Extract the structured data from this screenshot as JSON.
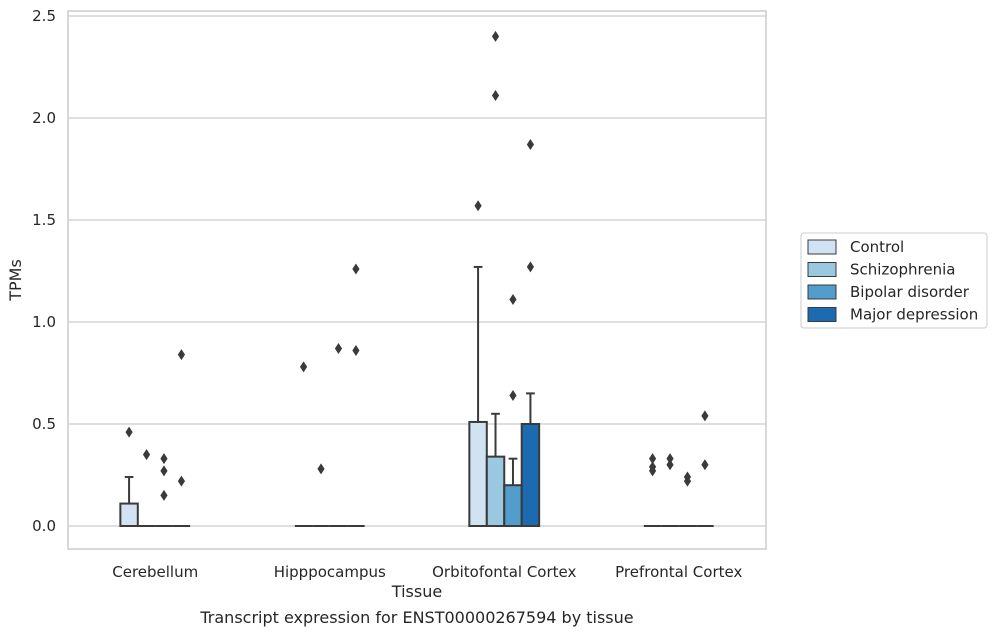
{
  "chart_data": {
    "type": "box",
    "xlabel": "Tissue",
    "ylabel": "TPMs",
    "caption": "Transcript expression for ENST00000267594 by tissue",
    "ylim": [
      -0.12,
      2.53
    ],
    "yticks": [
      "0.0",
      "0.5",
      "1.0",
      "1.5",
      "2.0",
      "2.5"
    ],
    "grid": true,
    "legend_placement": "right",
    "categories": [
      "Cerebellum",
      "Hipppocampus",
      "Orbitofontal Cortex",
      "Prefrontal Cortex"
    ],
    "series": [
      {
        "name": "Control",
        "color": "#d1e2f2",
        "boxes": [
          {
            "q1": 0.0,
            "median": 0.0,
            "q3": 0.11,
            "whislo": 0.0,
            "whishi": 0.24,
            "fliers": [
              0.46
            ]
          },
          {
            "q1": 0.0,
            "median": 0.0,
            "q3": 0.0,
            "whislo": 0.0,
            "whishi": 0.0,
            "fliers": [
              0.78
            ]
          },
          {
            "q1": 0.0,
            "median": 0.0,
            "q3": 0.51,
            "whislo": 0.0,
            "whishi": 1.27,
            "fliers": [
              1.57
            ]
          },
          {
            "q1": 0.0,
            "median": 0.0,
            "q3": 0.0,
            "whislo": 0.0,
            "whishi": 0.0,
            "fliers": [
              0.27,
              0.29,
              0.33
            ]
          }
        ]
      },
      {
        "name": "Schizophrenia",
        "color": "#9ac8e0",
        "boxes": [
          {
            "q1": 0.0,
            "median": 0.0,
            "q3": 0.0,
            "whislo": 0.0,
            "whishi": 0.0,
            "fliers": [
              0.35
            ]
          },
          {
            "q1": 0.0,
            "median": 0.0,
            "q3": 0.0,
            "whislo": 0.0,
            "whishi": 0.0,
            "fliers": [
              0.28
            ]
          },
          {
            "q1": 0.0,
            "median": 0.0,
            "q3": 0.34,
            "whislo": 0.0,
            "whishi": 0.55,
            "fliers": [
              2.11,
              2.4
            ]
          },
          {
            "q1": 0.0,
            "median": 0.0,
            "q3": 0.0,
            "whislo": 0.0,
            "whishi": 0.0,
            "fliers": [
              0.3,
              0.33
            ]
          }
        ]
      },
      {
        "name": "Bipolar disorder",
        "color": "#529dcc",
        "boxes": [
          {
            "q1": 0.0,
            "median": 0.0,
            "q3": 0.0,
            "whislo": 0.0,
            "whishi": 0.0,
            "fliers": [
              0.15,
              0.27,
              0.33
            ]
          },
          {
            "q1": 0.0,
            "median": 0.0,
            "q3": 0.0,
            "whislo": 0.0,
            "whishi": 0.0,
            "fliers": [
              0.87
            ]
          },
          {
            "q1": 0.0,
            "median": 0.0,
            "q3": 0.2,
            "whislo": 0.0,
            "whishi": 0.33,
            "fliers": [
              0.64,
              1.11
            ]
          },
          {
            "q1": 0.0,
            "median": 0.0,
            "q3": 0.0,
            "whislo": 0.0,
            "whishi": 0.0,
            "fliers": [
              0.22,
              0.24
            ]
          }
        ]
      },
      {
        "name": "Major depression",
        "color": "#1c6aaf",
        "boxes": [
          {
            "q1": 0.0,
            "median": 0.0,
            "q3": 0.0,
            "whislo": 0.0,
            "whishi": 0.0,
            "fliers": [
              0.22,
              0.84
            ]
          },
          {
            "q1": 0.0,
            "median": 0.0,
            "q3": 0.0,
            "whislo": 0.0,
            "whishi": 0.0,
            "fliers": [
              0.86,
              1.26
            ]
          },
          {
            "q1": 0.0,
            "median": 0.0,
            "q3": 0.5,
            "whislo": 0.0,
            "whishi": 0.65,
            "fliers": [
              1.27,
              1.87
            ]
          },
          {
            "q1": 0.0,
            "median": 0.0,
            "q3": 0.0,
            "whislo": 0.0,
            "whishi": 0.0,
            "fliers": [
              0.3,
              0.54
            ]
          }
        ]
      }
    ]
  }
}
